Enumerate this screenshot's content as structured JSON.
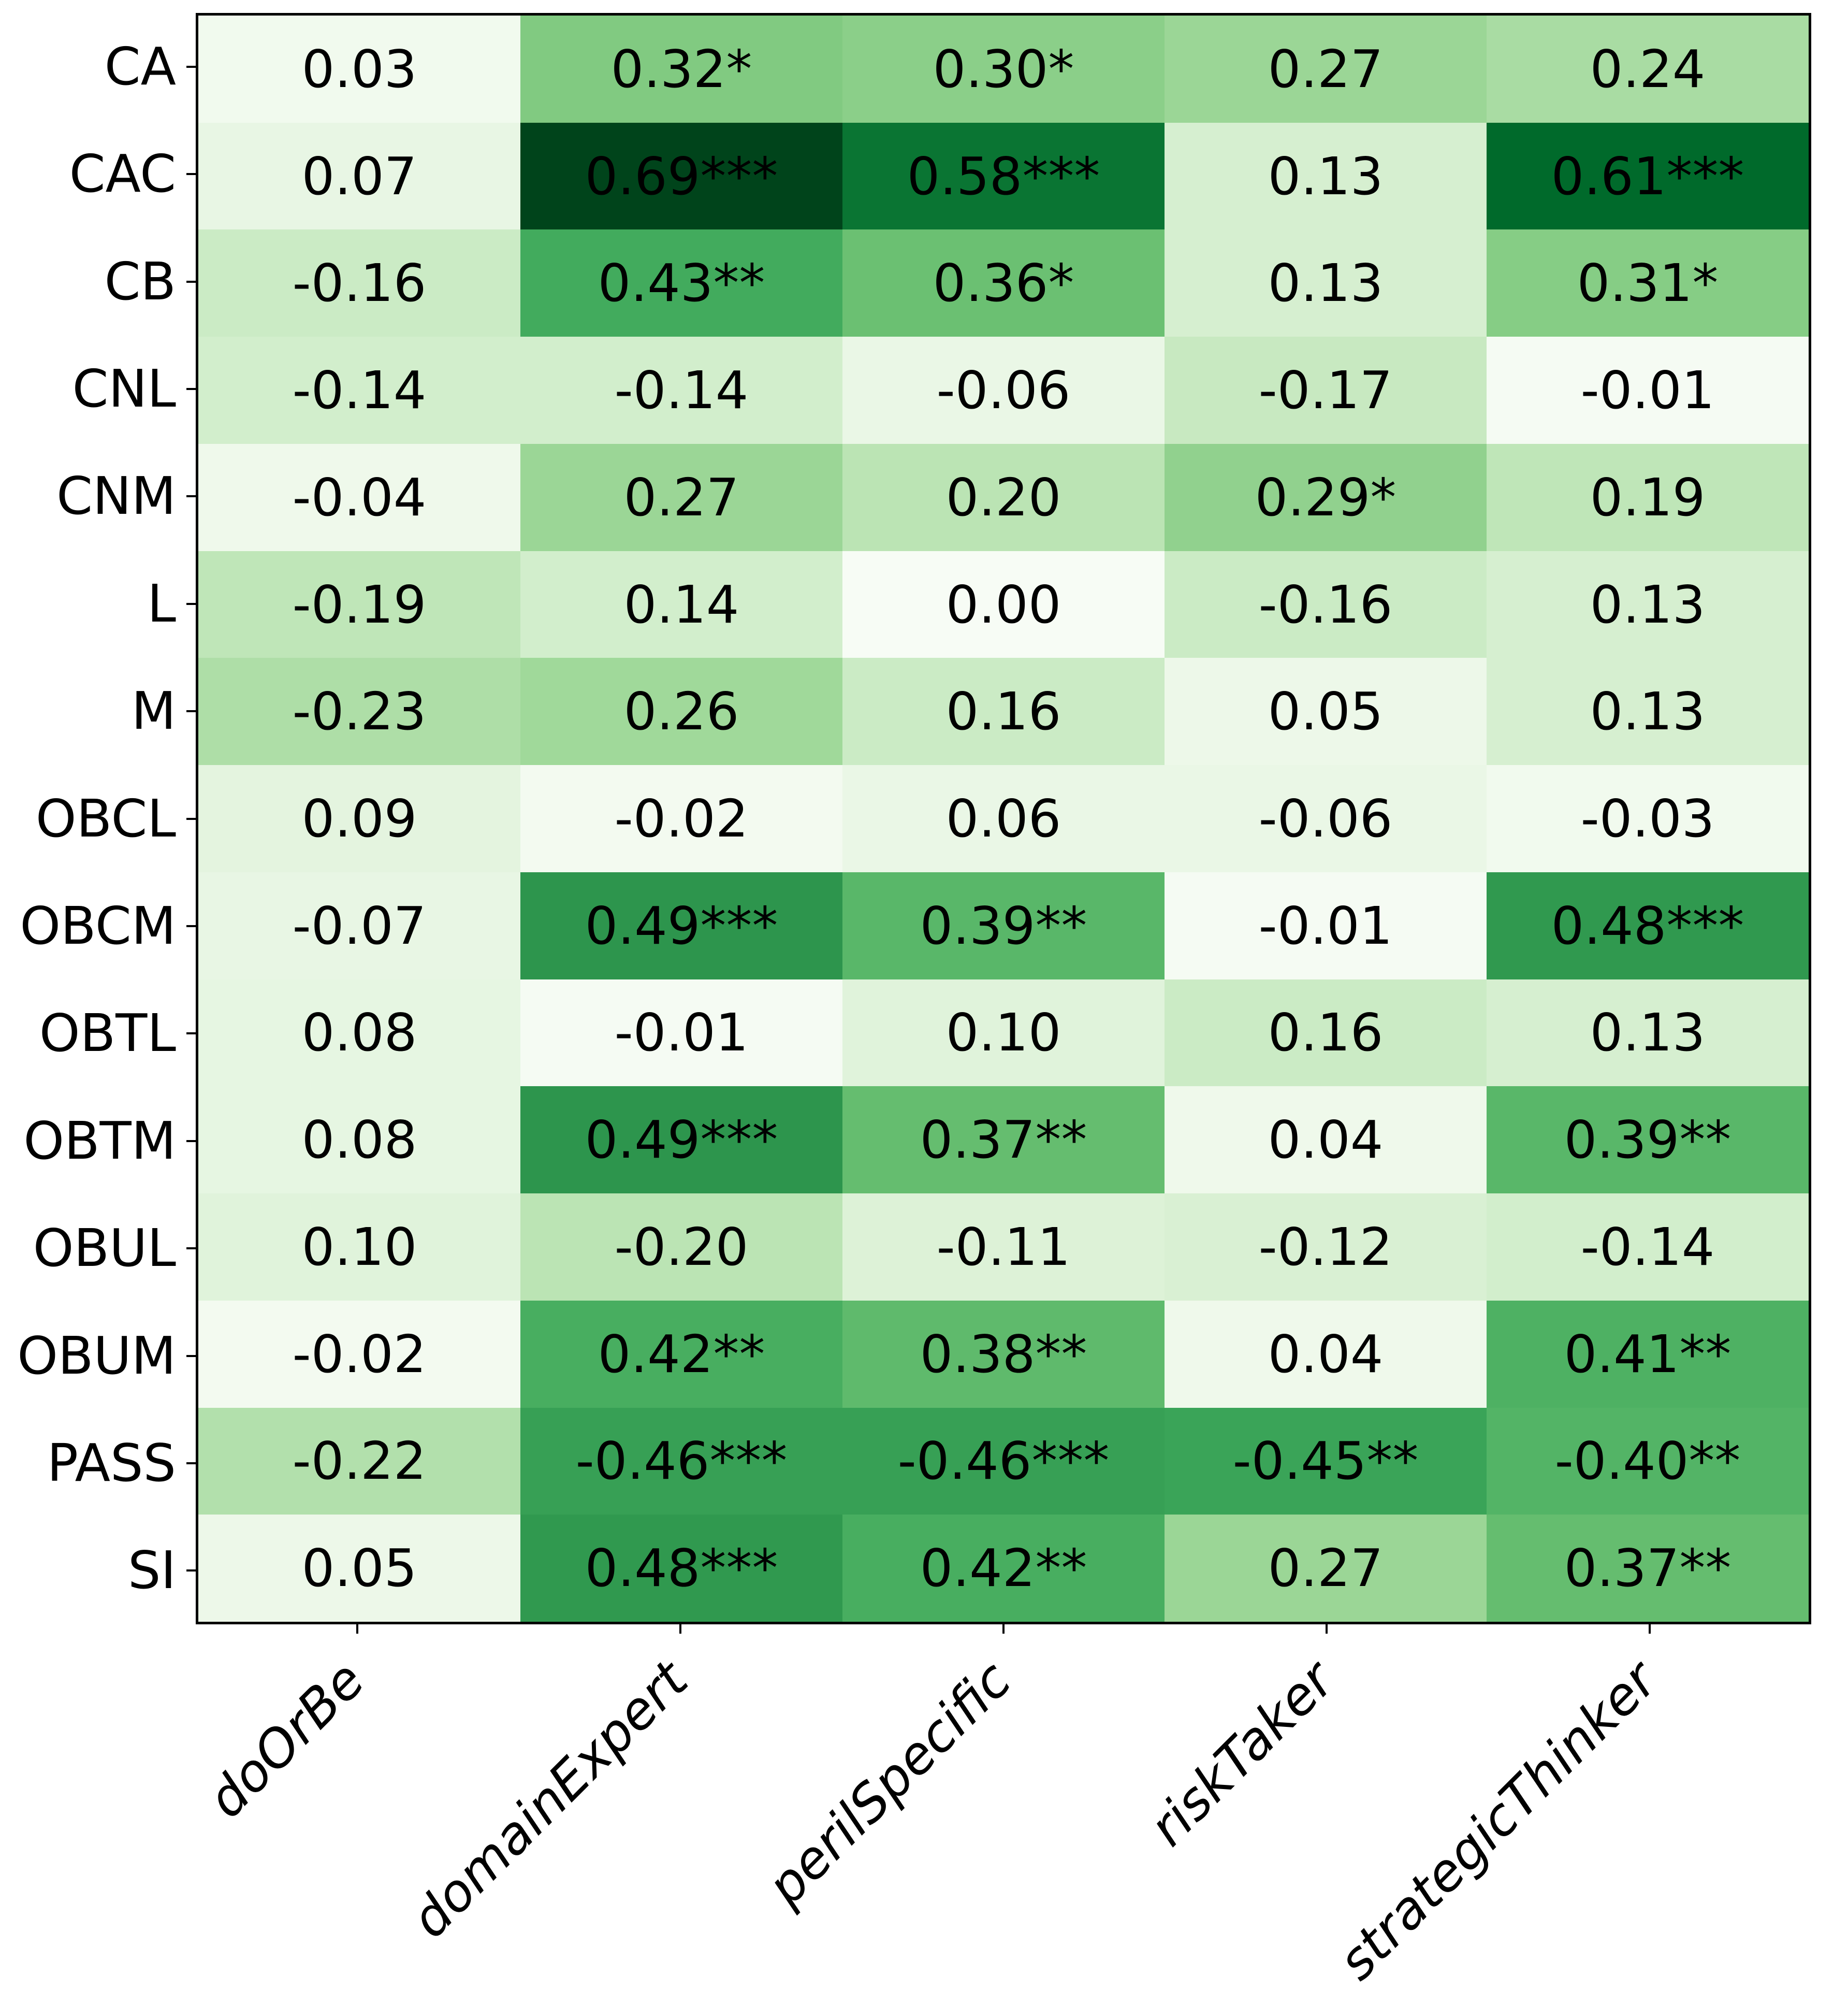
{
  "chart_data": {
    "type": "heatmap",
    "title": "",
    "xlabel": "",
    "ylabel": "",
    "legend": "none",
    "grid": false,
    "rows": [
      "CA",
      "CAC",
      "CB",
      "CNL",
      "CNM",
      "L",
      "M",
      "OBCL",
      "OBCM",
      "OBTL",
      "OBTM",
      "OBUL",
      "OBUM",
      "PASS",
      "SI"
    ],
    "columns": [
      "doOrBe",
      "domainExpert",
      "perilSpecific",
      "riskTaker",
      "strategicThinker"
    ],
    "values": [
      [
        0.03,
        0.32,
        0.3,
        0.27,
        0.24
      ],
      [
        0.07,
        0.69,
        0.58,
        0.13,
        0.61
      ],
      [
        -0.16,
        0.43,
        0.36,
        0.13,
        0.31
      ],
      [
        -0.14,
        -0.14,
        -0.06,
        -0.17,
        -0.01
      ],
      [
        -0.04,
        0.27,
        0.2,
        0.29,
        0.19
      ],
      [
        -0.19,
        0.14,
        0.0,
        -0.16,
        0.13
      ],
      [
        -0.23,
        0.26,
        0.16,
        0.05,
        0.13
      ],
      [
        0.09,
        -0.02,
        0.06,
        -0.06,
        -0.03
      ],
      [
        -0.07,
        0.49,
        0.39,
        -0.01,
        0.48
      ],
      [
        0.08,
        -0.01,
        0.1,
        0.16,
        0.13
      ],
      [
        0.08,
        0.49,
        0.37,
        0.04,
        0.39
      ],
      [
        0.1,
        -0.2,
        -0.11,
        -0.12,
        -0.14
      ],
      [
        -0.02,
        0.42,
        0.38,
        0.04,
        0.41
      ],
      [
        -0.22,
        -0.46,
        -0.46,
        -0.45,
        -0.4
      ],
      [
        0.05,
        0.48,
        0.42,
        0.27,
        0.37
      ]
    ],
    "cell_labels": [
      [
        "0.03",
        "0.32*",
        "0.30*",
        "0.27",
        "0.24"
      ],
      [
        "0.07",
        "0.69***",
        "0.58***",
        "0.13",
        "0.61***"
      ],
      [
        "-0.16",
        "0.43**",
        "0.36*",
        "0.13",
        "0.31*"
      ],
      [
        "-0.14",
        "-0.14",
        "-0.06",
        "-0.17",
        "-0.01"
      ],
      [
        "-0.04",
        "0.27",
        "0.20",
        "0.29*",
        "0.19"
      ],
      [
        "-0.19",
        "0.14",
        "0.00",
        "-0.16",
        "0.13"
      ],
      [
        "-0.23",
        "0.26",
        "0.16",
        "0.05",
        "0.13"
      ],
      [
        "0.09",
        "-0.02",
        "0.06",
        "-0.06",
        "-0.03"
      ],
      [
        "-0.07",
        "0.49***",
        "0.39**",
        "-0.01",
        "0.48***"
      ],
      [
        "0.08",
        "-0.01",
        "0.10",
        "0.16",
        "0.13"
      ],
      [
        "0.08",
        "0.49***",
        "0.37**",
        "0.04",
        "0.39**"
      ],
      [
        "0.10",
        "-0.20",
        "-0.11",
        "-0.12",
        "-0.14"
      ],
      [
        "-0.02",
        "0.42**",
        "0.38**",
        "0.04",
        "0.41**"
      ],
      [
        "-0.22",
        "-0.46***",
        "-0.46***",
        "-0.45**",
        "-0.40**"
      ],
      [
        "0.05",
        "0.48***",
        "0.42**",
        "0.27",
        "0.37**"
      ]
    ],
    "colormap": {
      "name": "Greens",
      "norm": "absolute-value",
      "vmin": 0,
      "vmax": 0.69,
      "anchors": [
        "#f7fcf5",
        "#e5f5e0",
        "#c7e9c0",
        "#a1d99b",
        "#74c476",
        "#41ab5d",
        "#238b45",
        "#006d2c",
        "#00441b"
      ]
    },
    "text_color": "#000000",
    "border_color": "#000000"
  }
}
